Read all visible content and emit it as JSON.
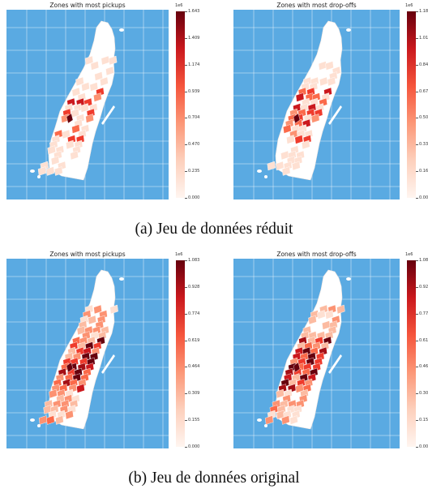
{
  "captions": {
    "a": "(a) Jeu de données réduit",
    "b": "(b) Jeu de données original"
  },
  "colors": {
    "water": "#5aaae2",
    "land": "#ffffff",
    "scale_low": "#fff5f0",
    "scale_high": "#67000d"
  },
  "maps": [
    {
      "title": "Zones with most pickups",
      "exponent": "1e6",
      "ticks": [
        "1.643",
        "1.409",
        "1.174",
        "0.939",
        "0.704",
        "0.470",
        "0.235",
        "0.000"
      ],
      "intensity": "concentrated"
    },
    {
      "title": "Zones with most drop-offs",
      "exponent": "1e6",
      "ticks": [
        "1.18",
        "1.01",
        "0.84",
        "0.67",
        "0.50",
        "0.33",
        "0.16",
        "0.00"
      ],
      "intensity": "concentrated"
    },
    {
      "title": "Zones with most pickups",
      "exponent": "1e6",
      "ticks": [
        "1.083",
        "0.928",
        "0.774",
        "0.619",
        "0.464",
        "0.309",
        "0.155",
        "0.000"
      ],
      "intensity": "spread"
    },
    {
      "title": "Zones with most drop-offs",
      "exponent": "1e6",
      "ticks": [
        "1.08",
        "0.92",
        "0.77",
        "0.61",
        "0.46",
        "0.30",
        "0.15",
        "0.00"
      ],
      "intensity": "spread"
    }
  ]
}
